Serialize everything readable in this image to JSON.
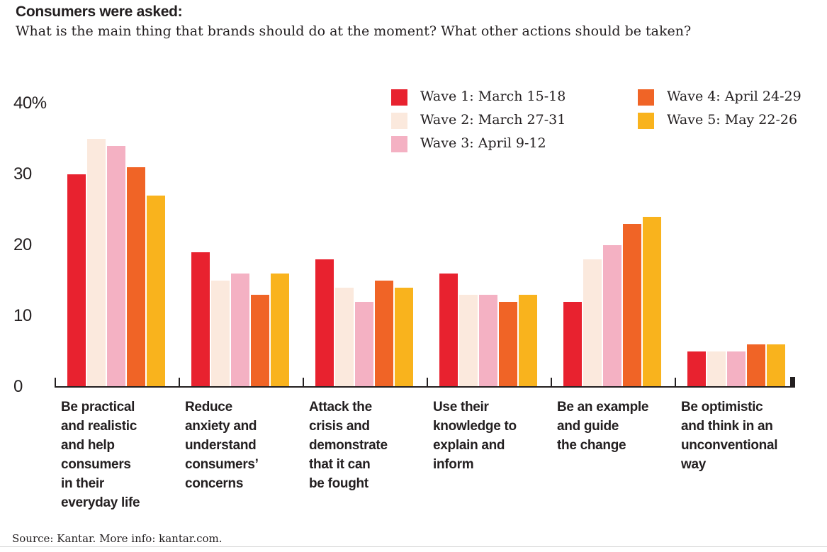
{
  "header": {
    "title": "Consumers were asked:",
    "subtitle": "What is the main thing that brands should do at the moment? What other actions should be taken?"
  },
  "legend": {
    "position": "top-right",
    "items": [
      {
        "label": "Wave 1: March 15-18",
        "color": "#e8222f"
      },
      {
        "label": "Wave 2: March 27-31",
        "color": "#fbe9dd"
      },
      {
        "label": "Wave 3: April 9-12",
        "color": "#f4b1c3"
      },
      {
        "label": "Wave 4: April 24-29",
        "color": "#f06426"
      },
      {
        "label": "Wave 5: May 22-26",
        "color": "#f9b31d"
      }
    ]
  },
  "chart_data": {
    "type": "bar",
    "title": "Consumers were asked:",
    "subtitle": "What is the main thing that brands should do at the moment? What other actions should be taken?",
    "categories": [
      "Be practical and realistic and help consumers in their everyday life",
      "Reduce anxiety and understand consumers’ concerns",
      "Attack the crisis and demonstrate that it can be fought",
      "Use their knowledge to explain and inform",
      "Be an example and guide the change",
      "Be optimistic and think in an unconventional way"
    ],
    "category_lines": [
      "Be practical\nand realistic\nand help\nconsumers\nin their\neveryday life",
      "Reduce\nanxiety and\nunderstand\nconsumers’\nconcerns",
      "Attack the\ncrisis and\ndemonstrate\nthat it can\nbe fought",
      "Use their\nknowledge to\nexplain and\ninform",
      "Be an example\nand guide\nthe change",
      "Be optimistic\nand think in an\nunconventional\nway"
    ],
    "series": [
      {
        "name": "Wave 1: March 15-18",
        "color": "#e8222f",
        "values": [
          30,
          19,
          18,
          16,
          12,
          5
        ]
      },
      {
        "name": "Wave 2: March 27-31",
        "color": "#fbe9dd",
        "values": [
          35,
          15,
          14,
          13,
          18,
          5
        ]
      },
      {
        "name": "Wave 3: April 9-12",
        "color": "#f4b1c3",
        "values": [
          34,
          16,
          12,
          13,
          20,
          5
        ]
      },
      {
        "name": "Wave 4: April 24-29",
        "color": "#f06426",
        "values": [
          31,
          13,
          15,
          12,
          23,
          6
        ]
      },
      {
        "name": "Wave 5: May 22-26",
        "color": "#f9b31d",
        "values": [
          27,
          16,
          14,
          13,
          24,
          6
        ]
      }
    ],
    "xlabel": "",
    "ylabel": "",
    "ylim": [
      0,
      40
    ],
    "y_axis": {
      "ticks": [
        {
          "label": "40%",
          "value": 40
        },
        {
          "label": "30",
          "value": 30
        },
        {
          "label": "20",
          "value": 20
        },
        {
          "label": "10",
          "value": 10
        },
        {
          "label": "0",
          "value": 0
        }
      ]
    },
    "grid": false,
    "legend_position": "top-right"
  },
  "footer": {
    "source": "Source: Kantar. More info: kantar.com."
  }
}
